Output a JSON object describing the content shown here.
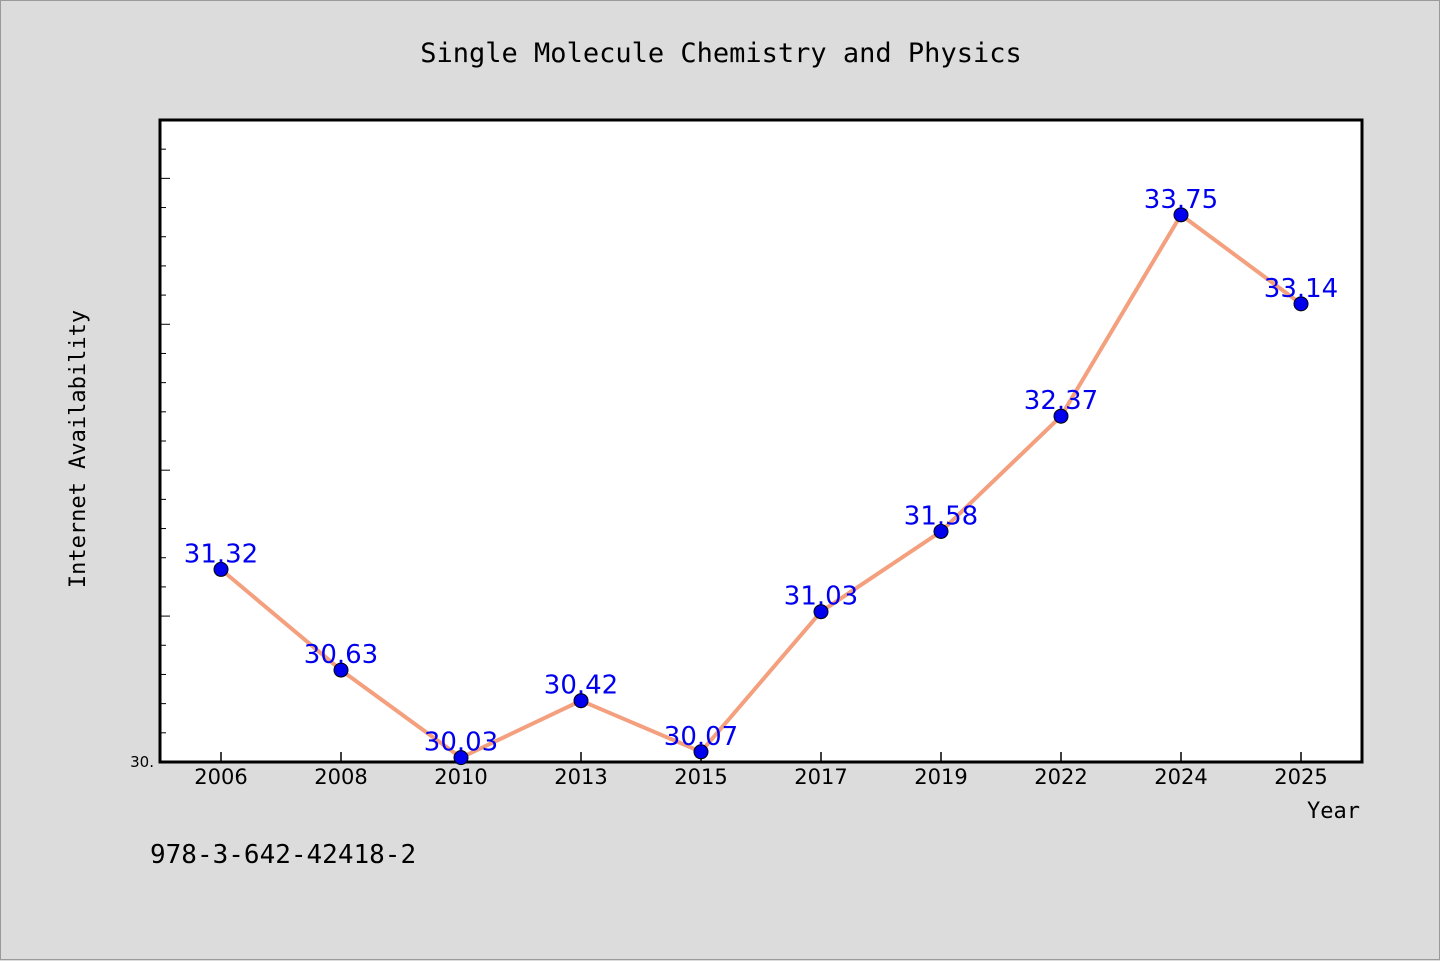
{
  "chart_data": {
    "type": "line",
    "title": "Single Molecule Chemistry and Physics",
    "xlabel": "Year",
    "ylabel": "Internet Availability",
    "categories": [
      "2006",
      "2008",
      "2010",
      "2013",
      "2015",
      "2017",
      "2019",
      "2022",
      "2024",
      "2025"
    ],
    "values": [
      31.32,
      30.63,
      30.03,
      30.42,
      30.07,
      31.03,
      31.58,
      32.37,
      33.75,
      33.14
    ],
    "data_labels": [
      "31.32",
      "30.63",
      "30.03",
      "30.42",
      "30.07",
      "31.03",
      "31.58",
      "32.37",
      "33.75",
      "33.14"
    ],
    "y_tick_label": "30.",
    "ylim": [
      30.0,
      34.4
    ],
    "grid": false,
    "legend": "none",
    "colors": {
      "line": "#f4a07e",
      "marker": "#0000ee",
      "label": "#0000ee",
      "background": "#dcdcdc",
      "plot_bg": "#ffffff"
    }
  },
  "footer_text": "978-3-642-42418-2"
}
